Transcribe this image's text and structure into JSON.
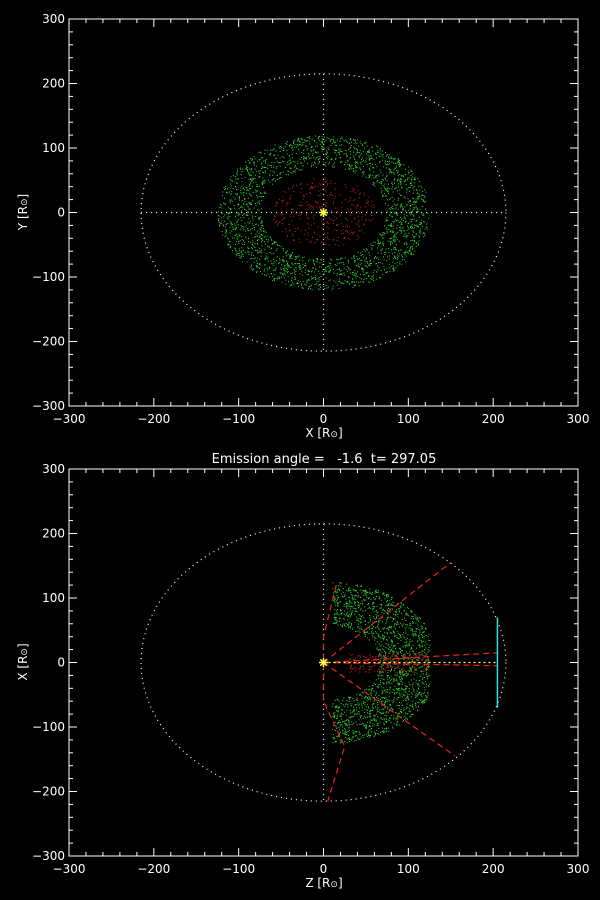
{
  "colors": {
    "background": "#000000",
    "axes": "#ffffff",
    "outer_particles": "#33dd33",
    "inner_particles": "#cc2222",
    "dashed_lines": "#ee2222",
    "sun_marker": "#ffff44",
    "sight_line": "#33dddd"
  },
  "chart_data": [
    {
      "type": "scatter",
      "title": "",
      "xlabel": "X [R",
      "ylabel": "Y [R",
      "xlabel_symbol": "⊙",
      "ylabel_symbol": "⊙",
      "xlim": [
        -300,
        300
      ],
      "ylim": [
        -300,
        300
      ],
      "xticks": [
        -300,
        -200,
        -100,
        0,
        100,
        200,
        300
      ],
      "yticks": [
        -300,
        -200,
        -100,
        0,
        100,
        200,
        300
      ],
      "xtick_labels": [
        "−300",
        "−200",
        "−100",
        "0",
        "100",
        "200",
        "300"
      ],
      "ytick_labels": [
        "−300",
        "−200",
        "−100",
        "0",
        "100",
        "200",
        "300"
      ],
      "reference_circle_radius": 215,
      "reference_crosshair_extent": 215,
      "outer_cloud": {
        "shape": "ellipse",
        "center": [
          0,
          0
        ],
        "rx": 125,
        "ry": 120
      },
      "inner_cloud": {
        "shape": "ellipse",
        "center": [
          0,
          0
        ],
        "rx": 60,
        "ry": 55
      },
      "sun": [
        0,
        0
      ]
    },
    {
      "type": "scatter",
      "title": "Emission angle =   -1.6  t= 297.05",
      "xlabel": "Z [R",
      "ylabel": "X [R",
      "xlabel_symbol": "⊙",
      "ylabel_symbol": "⊙",
      "xlim": [
        -300,
        300
      ],
      "ylim": [
        -300,
        300
      ],
      "xticks": [
        -300,
        -200,
        -100,
        0,
        100,
        200,
        300
      ],
      "yticks": [
        -300,
        -200,
        -100,
        0,
        100,
        200,
        300
      ],
      "xtick_labels": [
        "−300",
        "−200",
        "−100",
        "0",
        "100",
        "200",
        "300"
      ],
      "ytick_labels": [
        "−300",
        "−200",
        "−100",
        "0",
        "100",
        "200",
        "300"
      ],
      "reference_circle_radius": 215,
      "reference_crosshair_extent": 215,
      "outer_cloud": {
        "shape": "half-disk",
        "center": [
          0,
          0
        ],
        "radius": 125,
        "z_min": 10
      },
      "inner_cloud": {
        "shape": "band",
        "z_range": [
          30,
          125
        ],
        "x_range": [
          -15,
          15
        ]
      },
      "dashed_lines": [
        {
          "points": [
            [
              0,
              0
            ],
            [
              150,
              155
            ]
          ]
        },
        {
          "points": [
            [
              0,
              0
            ],
            [
              155,
              -145
            ]
          ]
        },
        {
          "points": [
            [
              0,
              0
            ],
            [
              205,
              15
            ]
          ]
        },
        {
          "points": [
            [
              0,
              0
            ],
            [
              205,
              -5
            ]
          ]
        },
        {
          "points": [
            [
              15,
              120
            ],
            [
              0,
              40
            ],
            [
              0,
              -60
            ],
            [
              25,
              -130
            ],
            [
              5,
              -215
            ]
          ]
        }
      ],
      "sight_line": {
        "z": 205,
        "x_range": [
          -70,
          70
        ]
      },
      "sun": [
        0,
        0
      ]
    }
  ]
}
